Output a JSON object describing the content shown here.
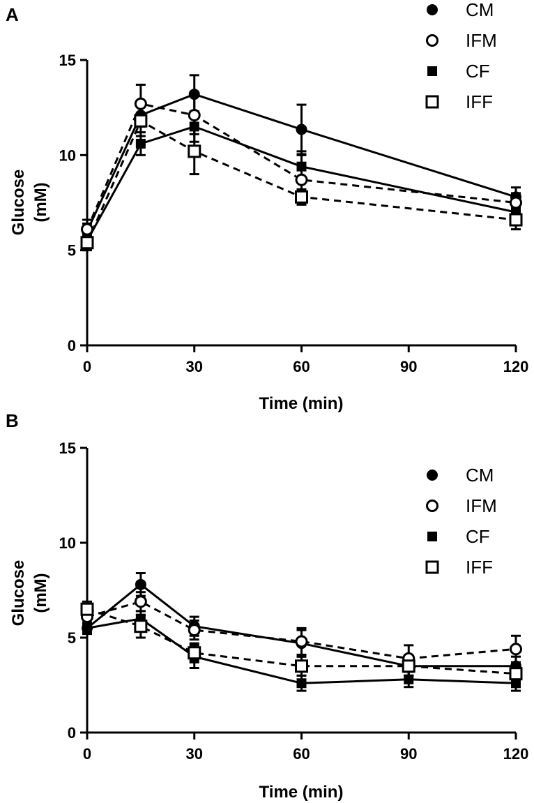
{
  "colors": {
    "ink": "#000000",
    "paper": "#ffffff"
  },
  "chart_data": [
    {
      "panel": "A",
      "type": "line",
      "xlabel": "Time (min)",
      "ylabel": [
        "Glucose",
        "(mM)"
      ],
      "xlim": [
        0,
        120
      ],
      "ylim": [
        0,
        15
      ],
      "xticks": [
        0,
        30,
        60,
        90,
        120
      ],
      "yticks": [
        0,
        5,
        10,
        15
      ],
      "grid": false,
      "legend_position": "top-right",
      "series": [
        {
          "name": "CM",
          "marker": "filled-circle",
          "line": "solid",
          "x": [
            0,
            15,
            30,
            60,
            120
          ],
          "y": [
            6.0,
            12.1,
            13.2,
            11.35,
            7.8
          ],
          "err": [
            0.4,
            0.6,
            1.0,
            1.3,
            0.5
          ]
        },
        {
          "name": "IFM",
          "marker": "open-circle",
          "line": "dashed",
          "x": [
            0,
            15,
            30,
            60,
            120
          ],
          "y": [
            6.1,
            12.7,
            12.1,
            8.7,
            7.5
          ],
          "err": [
            0.5,
            1.0,
            1.0,
            1.3,
            0.5
          ]
        },
        {
          "name": "CF",
          "marker": "filled-square",
          "line": "solid",
          "x": [
            0,
            15,
            30,
            60,
            120
          ],
          "y": [
            5.5,
            10.6,
            11.5,
            9.4,
            7.0
          ],
          "err": [
            0.4,
            0.6,
            0.8,
            0.8,
            0.5
          ]
        },
        {
          "name": "IFF",
          "marker": "open-square",
          "line": "dashed",
          "x": [
            0,
            15,
            30,
            60,
            120
          ],
          "y": [
            5.4,
            11.8,
            10.2,
            7.8,
            6.6
          ],
          "err": [
            0.4,
            0.8,
            1.2,
            0.4,
            0.5
          ]
        }
      ]
    },
    {
      "panel": "B",
      "type": "line",
      "xlabel": "Time (min)",
      "ylabel": [
        "Glucose",
        "(mM)"
      ],
      "xlim": [
        0,
        120
      ],
      "ylim": [
        0,
        15
      ],
      "xticks": [
        0,
        30,
        60,
        90,
        120
      ],
      "yticks": [
        0,
        5,
        10,
        15
      ],
      "grid": false,
      "legend_position": "right",
      "series": [
        {
          "name": "CM",
          "marker": "filled-circle",
          "line": "solid",
          "x": [
            0,
            15,
            30,
            60,
            90,
            120
          ],
          "y": [
            5.5,
            7.8,
            5.6,
            4.7,
            3.5,
            3.5
          ],
          "err": [
            0.3,
            0.6,
            0.5,
            0.7,
            0.5,
            0.5
          ]
        },
        {
          "name": "IFM",
          "marker": "open-circle",
          "line": "dashed",
          "x": [
            0,
            15,
            30,
            60,
            90,
            120
          ],
          "y": [
            6.1,
            6.9,
            5.4,
            4.8,
            3.9,
            4.4
          ],
          "err": [
            0.4,
            0.5,
            0.5,
            0.7,
            0.7,
            0.7
          ]
        },
        {
          "name": "CF",
          "marker": "filled-square",
          "line": "solid",
          "x": [
            0,
            15,
            30,
            60,
            90,
            120
          ],
          "y": [
            5.5,
            6.0,
            4.0,
            2.6,
            2.8,
            2.6
          ],
          "err": [
            0.3,
            0.4,
            0.6,
            0.4,
            0.4,
            0.4
          ]
        },
        {
          "name": "IFF",
          "marker": "open-square",
          "line": "dashed",
          "x": [
            0,
            15,
            30,
            60,
            90,
            120
          ],
          "y": [
            6.5,
            5.6,
            4.2,
            3.5,
            3.5,
            3.1
          ],
          "err": [
            0.4,
            0.6,
            0.5,
            0.5,
            0.5,
            0.5
          ]
        }
      ]
    }
  ]
}
